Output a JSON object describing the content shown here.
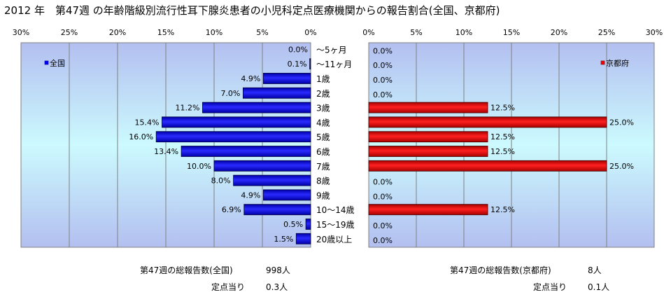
{
  "title": "2012 年　第47週 の年齢階級別流行性耳下腺炎患者の小児科定点医療機関からの報告割合(全国、京都府)",
  "chart_data": [
    {
      "type": "bar",
      "orientation": "horizontal",
      "direction": "right-to-left",
      "categories": [
        "～5ヶ月",
        "～11ヶ月",
        "1歳",
        "2歳",
        "3歳",
        "4歳",
        "5歳",
        "6歳",
        "7歳",
        "8歳",
        "9歳",
        "10～14歳",
        "15～19歳",
        "20歳以上"
      ],
      "series": [
        {
          "name": "全国",
          "color": "#0000ff",
          "values": [
            0.0,
            0.1,
            4.9,
            7.0,
            11.2,
            15.4,
            16.0,
            13.4,
            10.0,
            8.0,
            4.9,
            6.9,
            0.5,
            1.5
          ]
        }
      ],
      "value_labels": [
        "0.0%",
        "0.1%",
        "4.9%",
        "7.0%",
        "11.2%",
        "15.4%",
        "16.0%",
        "13.4%",
        "10.0%",
        "8.0%",
        "4.9%",
        "6.9%",
        "0.5%",
        "1.5%"
      ],
      "xlim": [
        0,
        30
      ],
      "xticks": [
        "30%",
        "25%",
        "20%",
        "15%",
        "10%",
        "5%",
        "0%"
      ],
      "grid": true,
      "legend": "top-left"
    },
    {
      "type": "bar",
      "orientation": "horizontal",
      "categories": [
        "～5ヶ月",
        "～11ヶ月",
        "1歳",
        "2歳",
        "3歳",
        "4歳",
        "5歳",
        "6歳",
        "7歳",
        "8歳",
        "9歳",
        "10～14歳",
        "15～19歳",
        "20歳以上"
      ],
      "series": [
        {
          "name": "京都府",
          "color": "#ff0000",
          "values": [
            0.0,
            0.0,
            0.0,
            0.0,
            12.5,
            25.0,
            12.5,
            12.5,
            25.0,
            0.0,
            0.0,
            12.5,
            0.0,
            0.0
          ]
        }
      ],
      "value_labels": [
        "0.0%",
        "0.0%",
        "0.0%",
        "0.0%",
        "12.5%",
        "25.0%",
        "12.5%",
        "12.5%",
        "25.0%",
        "0.0%",
        "0.0%",
        "12.5%",
        "0.0%",
        "0.0%"
      ],
      "xlim": [
        0,
        30
      ],
      "xticks": [
        "0%",
        "5%",
        "10%",
        "15%",
        "20%",
        "25%",
        "30%"
      ],
      "grid": true,
      "legend": "top-right"
    }
  ],
  "footer": {
    "national_total_label": "第47週の総報告数(全国)",
    "national_total_value": "998人",
    "national_per_label": "定点当り",
    "national_per_value": "0.3人",
    "kyoto_total_label": "第47週の総報告数(京都府)",
    "kyoto_total_value": "8人",
    "kyoto_per_label": "定点当り",
    "kyoto_per_value": "0.1人"
  }
}
